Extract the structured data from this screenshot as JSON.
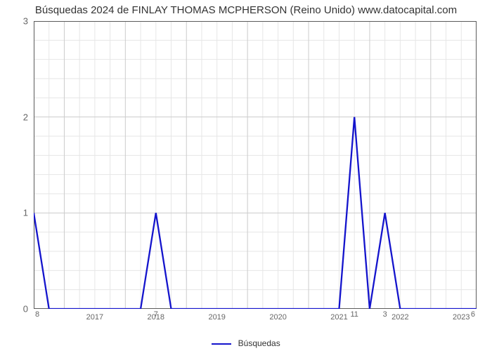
{
  "chart": {
    "type": "line",
    "title": "Búsquedas 2024 de FINLAY THOMAS MCPHERSON (Reino Unido) www.datocapital.com",
    "title_fontsize": 15,
    "title_color": "#333333",
    "background_color": "#ffffff",
    "plot_border_color": "#5b5b5b",
    "plot_border_width": 1,
    "grid_major_color": "#cccccc",
    "grid_minor_color": "#e6e6e6",
    "grid_major_width": 1,
    "grid_minor_width": 1,
    "y_axis": {
      "min": 0,
      "max": 3,
      "major_ticks": [
        0,
        1,
        2,
        3
      ],
      "minor_step": 0.2,
      "label_fontsize": 13,
      "label_color": "#666666"
    },
    "x_axis": {
      "min": 2016.5,
      "max": 2023.75,
      "year_ticks": [
        2017,
        2018,
        2019,
        2020,
        2021,
        2022,
        2023
      ],
      "minor_per_year": 4,
      "label_fontsize": 11,
      "label_color": "#666666"
    },
    "series": {
      "name": "Búsquedas",
      "color": "#1414cc",
      "line_width": 2.3,
      "points": [
        {
          "x": 2016.5,
          "y": 1,
          "label": "8",
          "label_side": "below-left"
        },
        {
          "x": 2016.75,
          "y": 0
        },
        {
          "x": 2017.0,
          "y": 0
        },
        {
          "x": 2017.25,
          "y": 0
        },
        {
          "x": 2017.5,
          "y": 0
        },
        {
          "x": 2017.75,
          "y": 0
        },
        {
          "x": 2018.0,
          "y": 0
        },
        {
          "x": 2018.25,
          "y": 0
        },
        {
          "x": 2018.5,
          "y": 1,
          "label": "7",
          "label_side": "below"
        },
        {
          "x": 2018.75,
          "y": 0
        },
        {
          "x": 2019.0,
          "y": 0
        },
        {
          "x": 2019.25,
          "y": 0
        },
        {
          "x": 2019.5,
          "y": 0
        },
        {
          "x": 2019.75,
          "y": 0
        },
        {
          "x": 2020.0,
          "y": 0
        },
        {
          "x": 2020.25,
          "y": 0
        },
        {
          "x": 2020.5,
          "y": 0
        },
        {
          "x": 2020.75,
          "y": 0
        },
        {
          "x": 2021.0,
          "y": 0
        },
        {
          "x": 2021.25,
          "y": 0
        },
        {
          "x": 2021.5,
          "y": 0
        },
        {
          "x": 2021.75,
          "y": 2,
          "label": "11",
          "label_side": "below"
        },
        {
          "x": 2022.0,
          "y": 0
        },
        {
          "x": 2022.25,
          "y": 1,
          "label": "3",
          "label_side": "below"
        },
        {
          "x": 2022.5,
          "y": 0
        },
        {
          "x": 2022.75,
          "y": 0
        },
        {
          "x": 2023.0,
          "y": 0
        },
        {
          "x": 2023.25,
          "y": 0
        },
        {
          "x": 2023.5,
          "y": 0
        },
        {
          "x": 2023.75,
          "y": 0,
          "label": "6",
          "label_side": "below-right"
        }
      ]
    },
    "legend": {
      "position": "bottom-center",
      "fontsize": 12,
      "color": "#333333",
      "swatch_width": 28
    }
  }
}
